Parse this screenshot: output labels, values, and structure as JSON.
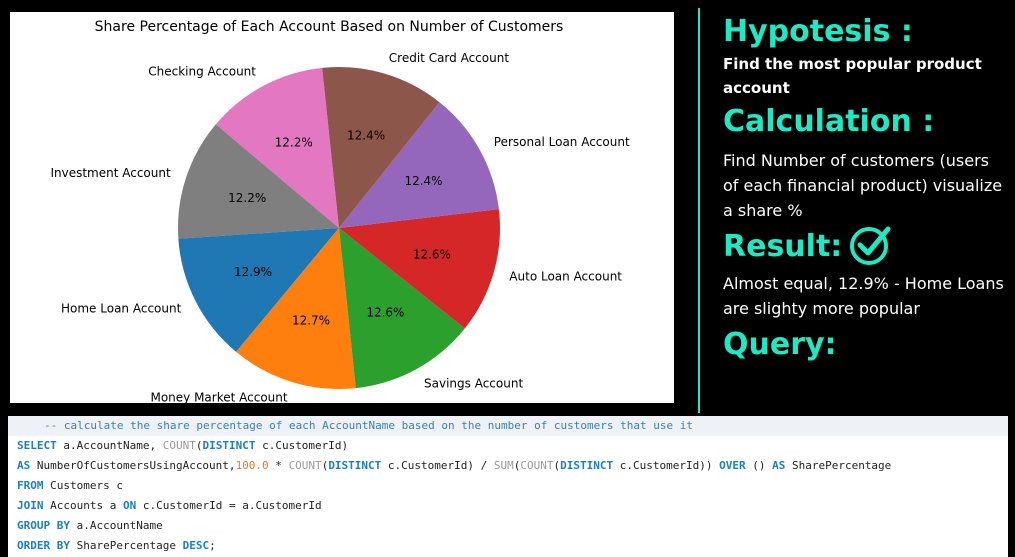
{
  "chart_data": {
    "type": "pie",
    "title": "Share Percentage of Each Account Based on Number of Customers",
    "slices": [
      {
        "label": "Checking Account",
        "value": 12.2,
        "display": "12.2%",
        "color": "#e377c2"
      },
      {
        "label": "Investment Account",
        "value": 12.2,
        "display": "12.2%",
        "color": "#7f7f7f"
      },
      {
        "label": "Home Loan Account",
        "value": 12.9,
        "display": "12.9%",
        "color": "#1f77b4"
      },
      {
        "label": "Money Market Account",
        "value": 12.7,
        "display": "12.7%",
        "color": "#ff7f0e"
      },
      {
        "label": "Savings Account",
        "value": 12.6,
        "display": "12.6%",
        "color": "#2ca02c"
      },
      {
        "label": "Auto Loan Account",
        "value": 12.6,
        "display": "12.6%",
        "color": "#d62728"
      },
      {
        "label": "Personal Loan Account",
        "value": 12.4,
        "display": "12.4%",
        "color": "#9467bd"
      },
      {
        "label": "Credit Card Account",
        "value": 12.4,
        "display": "12.4%",
        "color": "#8c564b"
      }
    ],
    "start_angle_deg": 96,
    "direction": "counterclockwise"
  },
  "hypothesis": {
    "heading": "Hypotesis :",
    "text": "Find the most popular product account"
  },
  "calculation": {
    "heading": "Calculation :",
    "text": "Find Number of customers (users of each financial product) visualize a share %"
  },
  "result": {
    "heading": "Result:",
    "icon": "check-circle-icon",
    "text": "Almost equal, 12.9% - Home Loans are slighty more popular"
  },
  "query": {
    "heading": "Query:",
    "lines": {
      "comment": "-- calculate the share percentage of each AccountName based on the number of customers that use it",
      "l1_kw1": "SELECT",
      "l1_t1": " a.AccountName, ",
      "l1_fn1": "COUNT",
      "l1_t2": "(",
      "l1_kw2": "DISTINCT",
      "l1_t3": " c.CustomerId)",
      "l2_kw1": "AS",
      "l2_t1": " NumberOfCustomersUsingAccount,",
      "l2_num1": "100.0",
      "l2_t2": " * ",
      "l2_fn1": "COUNT",
      "l2_t3": "(",
      "l2_kw2": "DISTINCT",
      "l2_t4": " c.CustomerId) / ",
      "l2_fn2": "SUM",
      "l2_t5": "(",
      "l2_fn3": "COUNT",
      "l2_t6": "(",
      "l2_kw3": "DISTINCT",
      "l2_t7": " c.CustomerId)) ",
      "l2_kw4": "OVER",
      "l2_t8": " () ",
      "l2_kw5": "AS",
      "l2_t9": " SharePercentage",
      "l3_kw1": "FROM",
      "l3_t1": " Customers c",
      "l4_kw1": "JOIN",
      "l4_t1": " Accounts a ",
      "l4_kw2": "ON",
      "l4_t2": " c.CustomerId = a.CustomerId",
      "l5_kw1": "GROUP BY",
      "l5_t1": " a.AccountName",
      "l6_kw1": "ORDER BY",
      "l6_t1": " SharePercentage ",
      "l6_kw2": "DESC",
      "l6_t2": ";"
    }
  },
  "colors": {
    "accent": "#1de9c5",
    "background": "#000000"
  }
}
